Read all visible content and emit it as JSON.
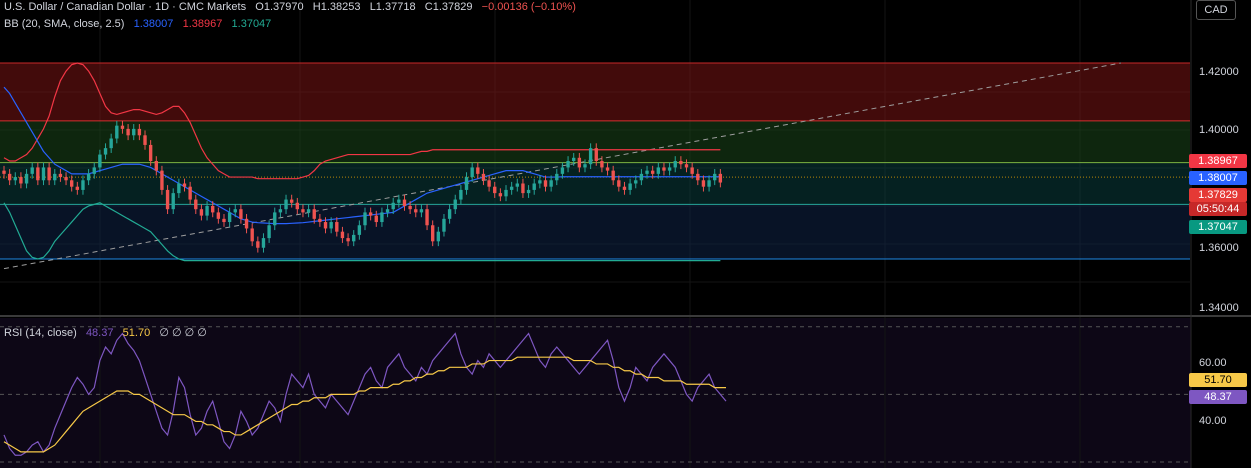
{
  "header": {
    "symbol": "U.S. Dollar / Canadian Dollar · 1D · CMC Markets",
    "open": "O1.37970",
    "high": "H1.38253",
    "low": "L1.37718",
    "close": "C1.37829",
    "change": "−0.00136 (−0.10%)",
    "bb_label": "BB (20, SMA, close, 2.5)",
    "bb_mid": "1.38007",
    "bb_upper": "1.38967",
    "bb_lower": "1.37047",
    "rsi_label": "RSI (14, close)",
    "rsi_value": "48.37",
    "rsi_ma": "51.70",
    "rsi_nulls": "∅ ∅ ∅ ∅"
  },
  "currency": "CAD",
  "price_axis": [
    "1.42000",
    "1.40000",
    "1.36000",
    "1.34000"
  ],
  "rsi_axis": [
    "60.00",
    "40.00"
  ],
  "price_tags": {
    "bb_upper": "1.38967",
    "bb_mid": "1.38007",
    "last": "1.37829",
    "countdown": "05:50:44",
    "bb_lower": "1.37047"
  },
  "rsi_tags": {
    "ma": "51.70",
    "rsi": "48.37"
  },
  "colors": {
    "up": "#26a69a",
    "down": "#ef5350",
    "bb_mid": "#2962ff",
    "bb_upper": "#f23645",
    "bb_lower": "#22ab94",
    "rsi": "#7e57c2",
    "rsi_ma": "#f7c948"
  },
  "chart_data": [
    {
      "type": "candlestick",
      "ylim": [
        1.338,
        1.432
      ],
      "zones": [
        {
          "from": 1.3975,
          "to": 1.4155,
          "color": "red"
        },
        {
          "from": 1.3845,
          "to": 1.3975,
          "color": "green"
        },
        {
          "from": 1.3715,
          "to": 1.3845,
          "color": "teal"
        },
        {
          "from": 1.3545,
          "to": 1.3715,
          "color": "blue"
        }
      ],
      "hlines": [
        1.4155,
        1.3975,
        1.3845,
        1.3715,
        1.3545,
        1.38
      ],
      "trendline": {
        "start": [
          0,
          1.3515
        ],
        "end": [
          198,
          1.4155
        ]
      },
      "closes": [
        1.381,
        1.379,
        1.38,
        1.378,
        1.381,
        1.383,
        1.379,
        1.383,
        1.379,
        1.381,
        1.38,
        1.379,
        1.377,
        1.376,
        1.379,
        1.381,
        1.383,
        1.387,
        1.389,
        1.392,
        1.396,
        1.395,
        1.393,
        1.395,
        1.393,
        1.39,
        1.385,
        1.382,
        1.376,
        1.37,
        1.375,
        1.378,
        1.377,
        1.373,
        1.37,
        1.368,
        1.371,
        1.369,
        1.367,
        1.366,
        1.369,
        1.37,
        1.367,
        1.364,
        1.36,
        1.358,
        1.361,
        1.365,
        1.369,
        1.37,
        1.373,
        1.372,
        1.37,
        1.369,
        1.37,
        1.367,
        1.366,
        1.364,
        1.366,
        1.363,
        1.361,
        1.36,
        1.362,
        1.365,
        1.369,
        1.368,
        1.366,
        1.369,
        1.37,
        1.372,
        1.373,
        1.371,
        1.37,
        1.369,
        1.37,
        1.365,
        1.36,
        1.363,
        1.367,
        1.37,
        1.373,
        1.376,
        1.38,
        1.383,
        1.381,
        1.379,
        1.377,
        1.375,
        1.374,
        1.376,
        1.377,
        1.378,
        1.375,
        1.376,
        1.378,
        1.379,
        1.377,
        1.379,
        1.381,
        1.383,
        1.385,
        1.386,
        1.383,
        1.384,
        1.389,
        1.385,
        1.383,
        1.382,
        1.379,
        1.377,
        1.376,
        1.378,
        1.379,
        1.381,
        1.382,
        1.381,
        1.383,
        1.382,
        1.383,
        1.385,
        1.384,
        1.383,
        1.381,
        1.379,
        1.377,
        1.379,
        1.381,
        1.3783
      ],
      "bb_upper": [
        1.386,
        1.385,
        1.385,
        1.386,
        1.387,
        1.389,
        1.392,
        1.395,
        1.399,
        1.405,
        1.41,
        1.413,
        1.415,
        1.4155,
        1.415,
        1.413,
        1.41,
        1.406,
        1.402,
        1.4,
        1.3995,
        1.4,
        1.4005,
        1.401,
        1.401,
        1.4005,
        1.4,
        1.3995,
        1.4,
        1.401,
        1.402,
        1.402,
        1.4,
        1.397,
        1.393,
        1.389,
        1.386,
        1.384,
        1.382,
        1.381,
        1.38,
        1.38,
        1.38,
        1.38,
        1.38,
        1.3795,
        1.3795,
        1.3795,
        1.3795,
        1.3795,
        1.3795,
        1.3795,
        1.3795,
        1.38,
        1.3805,
        1.382,
        1.384,
        1.385,
        1.3855,
        1.386,
        1.3865,
        1.387,
        1.387,
        1.387,
        1.387,
        1.387,
        1.387,
        1.387,
        1.387,
        1.387,
        1.387,
        1.387,
        1.387,
        1.3875,
        1.388,
        1.388,
        1.3885,
        1.3885,
        1.3885,
        1.3885,
        1.3885,
        1.3885,
        1.3885,
        1.3885,
        1.3885,
        1.3885,
        1.3885,
        1.3885,
        1.3885,
        1.3885,
        1.3885,
        1.3885,
        1.3885,
        1.3885,
        1.3885,
        1.3885,
        1.3885,
        1.3885,
        1.3885,
        1.3885,
        1.3885,
        1.3885,
        1.3885,
        1.3885,
        1.3885,
        1.3885,
        1.3885,
        1.3885,
        1.3885,
        1.3885,
        1.3885,
        1.3885,
        1.3885,
        1.3885,
        1.3885,
        1.3885,
        1.3885,
        1.3885,
        1.3885,
        1.3885,
        1.3885,
        1.3885,
        1.3885,
        1.3885,
        1.3885,
        1.3885,
        1.3885,
        1.3885
      ],
      "bb_mid": [
        1.408,
        1.406,
        1.403,
        1.4,
        1.397,
        1.394,
        1.391,
        1.388,
        1.386,
        1.384,
        1.383,
        1.382,
        1.381,
        1.381,
        1.381,
        1.381,
        1.3815,
        1.382,
        1.3825,
        1.383,
        1.3835,
        1.384,
        1.384,
        1.384,
        1.384,
        1.3835,
        1.383,
        1.382,
        1.381,
        1.38,
        1.379,
        1.378,
        1.377,
        1.376,
        1.375,
        1.374,
        1.373,
        1.372,
        1.371,
        1.37,
        1.369,
        1.368,
        1.367,
        1.3665,
        1.366,
        1.3658,
        1.3657,
        1.3656,
        1.3655,
        1.3655,
        1.3655,
        1.3656,
        1.3657,
        1.3658,
        1.366,
        1.3662,
        1.3664,
        1.3666,
        1.3668,
        1.367,
        1.3672,
        1.3674,
        1.3676,
        1.3678,
        1.368,
        1.3682,
        1.3684,
        1.3686,
        1.3688,
        1.369,
        1.37,
        1.371,
        1.372,
        1.373,
        1.374,
        1.375,
        1.3755,
        1.376,
        1.3765,
        1.377,
        1.3775,
        1.378,
        1.3785,
        1.379,
        1.3795,
        1.38,
        1.3805,
        1.381,
        1.3815,
        1.382,
        1.382,
        1.382,
        1.382,
        1.3815,
        1.381,
        1.3805,
        1.38,
        1.38,
        1.38,
        1.3801,
        1.3801,
        1.3801,
        1.3801,
        1.3801,
        1.3801,
        1.3801,
        1.3801,
        1.3801,
        1.3801,
        1.3801,
        1.3801,
        1.3801,
        1.3801,
        1.3801,
        1.3801,
        1.3801,
        1.3801,
        1.3801,
        1.3801,
        1.3801,
        1.3801,
        1.3801,
        1.3801,
        1.3801,
        1.3801,
        1.3801,
        1.3801,
        1.3801
      ],
      "bb_lower": [
        1.372,
        1.369,
        1.365,
        1.361,
        1.357,
        1.355,
        1.3545,
        1.355,
        1.357,
        1.36,
        1.362,
        1.364,
        1.366,
        1.368,
        1.37,
        1.371,
        1.3715,
        1.372,
        1.371,
        1.37,
        1.369,
        1.368,
        1.367,
        1.366,
        1.365,
        1.364,
        1.363,
        1.361,
        1.359,
        1.357,
        1.3555,
        1.3545,
        1.354,
        1.354,
        1.354,
        1.354,
        1.354,
        1.354,
        1.354,
        1.354,
        1.354,
        1.354,
        1.354,
        1.354,
        1.354,
        1.354,
        1.354,
        1.354,
        1.354,
        1.354,
        1.354,
        1.354,
        1.354,
        1.354,
        1.354,
        1.354,
        1.354,
        1.354,
        1.354,
        1.354,
        1.354,
        1.354,
        1.354,
        1.354,
        1.354,
        1.354,
        1.354,
        1.354,
        1.354,
        1.354,
        1.354,
        1.354,
        1.354,
        1.354,
        1.354,
        1.354,
        1.354,
        1.354,
        1.354,
        1.354,
        1.354,
        1.354,
        1.354,
        1.354,
        1.354,
        1.354,
        1.354,
        1.354,
        1.354,
        1.354,
        1.354,
        1.354,
        1.354,
        1.354,
        1.354,
        1.354,
        1.354,
        1.354,
        1.354,
        1.354,
        1.354,
        1.354,
        1.354,
        1.354,
        1.354,
        1.354,
        1.354,
        1.354,
        1.354,
        1.354,
        1.354,
        1.354,
        1.354,
        1.354,
        1.354,
        1.354,
        1.354,
        1.354,
        1.354,
        1.354,
        1.354,
        1.354,
        1.354,
        1.354,
        1.354,
        1.354,
        1.354,
        1.354
      ]
    },
    {
      "type": "line",
      "ylim": [
        30,
        72
      ],
      "hlines": [
        70,
        50,
        30
      ],
      "rsi": [
        38,
        34,
        32,
        32,
        33,
        35,
        36,
        33,
        35,
        40,
        44,
        48,
        52,
        55,
        53,
        50,
        52,
        60,
        64,
        62,
        66,
        68,
        65,
        63,
        60,
        55,
        50,
        45,
        40,
        38,
        45,
        55,
        52,
        44,
        38,
        40,
        45,
        48,
        42,
        36,
        34,
        38,
        45,
        42,
        38,
        40,
        44,
        48,
        46,
        42,
        50,
        56,
        54,
        52,
        56,
        50,
        48,
        46,
        50,
        48,
        46,
        44,
        48,
        52,
        56,
        58,
        54,
        52,
        58,
        60,
        62,
        58,
        56,
        54,
        58,
        56,
        60,
        62,
        64,
        66,
        68,
        62,
        58,
        56,
        60,
        58,
        62,
        60,
        58,
        60,
        62,
        64,
        66,
        68,
        64,
        60,
        58,
        62,
        64,
        62,
        60,
        58,
        56,
        58,
        60,
        62,
        64,
        66,
        60,
        52,
        48,
        52,
        58,
        56,
        54,
        58,
        60,
        62,
        60,
        58,
        54,
        50,
        48,
        52,
        54,
        56,
        52,
        50,
        48
      ],
      "rsi_ma": [
        36,
        35,
        34,
        33,
        33,
        33,
        33,
        33,
        34,
        35,
        37,
        39,
        41,
        43,
        45,
        46,
        47,
        48,
        49,
        50,
        51,
        51,
        51,
        50,
        50,
        49,
        48,
        47,
        46,
        45,
        44,
        44,
        44,
        43,
        42,
        42,
        41,
        41,
        40,
        39,
        39,
        38,
        38,
        39,
        40,
        41,
        42,
        43,
        44,
        45,
        46,
        47,
        47,
        48,
        48,
        49,
        49,
        49,
        50,
        50,
        50,
        50,
        50,
        51,
        51,
        52,
        52,
        52,
        52,
        53,
        53,
        54,
        54,
        55,
        55,
        56,
        56,
        57,
        57,
        58,
        58,
        58,
        58,
        59,
        59,
        59,
        60,
        60,
        60,
        60,
        60,
        61,
        61,
        61,
        61,
        61,
        61,
        61,
        61,
        61,
        61,
        60,
        60,
        60,
        60,
        59,
        59,
        59,
        58,
        58,
        57,
        57,
        56,
        56,
        55,
        55,
        55,
        54,
        54,
        54,
        54,
        53,
        53,
        53,
        53,
        53,
        52,
        52,
        52
      ],
      "ylabel": ""
    }
  ]
}
